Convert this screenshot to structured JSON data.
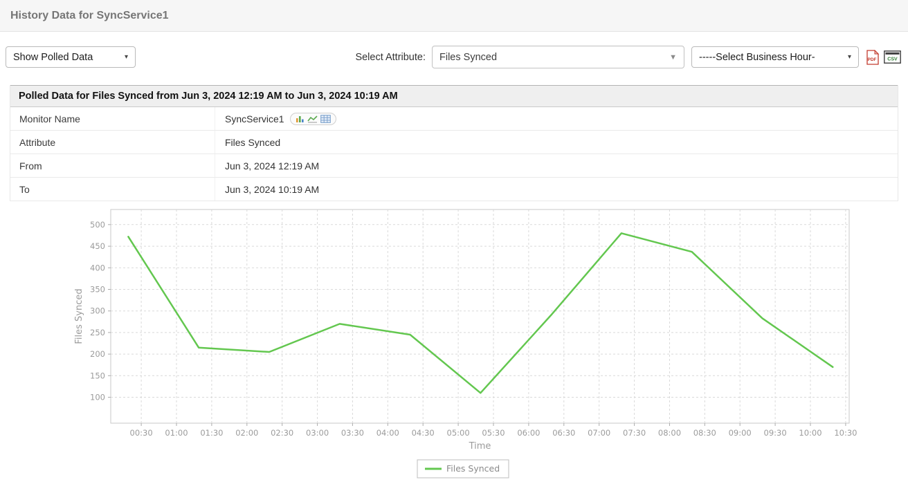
{
  "header": {
    "title": "History Data for SyncService1"
  },
  "toolbar": {
    "polled_select_value": "Show Polled Data",
    "attribute_label": "Select Attribute:",
    "attribute_select_value": "Files Synced",
    "business_hour_select_value": "-----Select Business Hour-",
    "pdf_icon": "PDF",
    "csv_icon": "CSV"
  },
  "summary": {
    "title": "Polled Data for Files Synced from Jun 3, 2024 12:19 AM to Jun 3, 2024 10:19 AM",
    "rows": [
      {
        "label": "Monitor Name",
        "value": "SyncService1"
      },
      {
        "label": "Attribute",
        "value": "Files Synced"
      },
      {
        "label": "From",
        "value": "Jun 3, 2024 12:19 AM"
      },
      {
        "label": "To",
        "value": "Jun 3, 2024 10:19 AM"
      }
    ]
  },
  "chart_data": {
    "type": "line",
    "title": "",
    "xlabel": "Time",
    "ylabel": "Files Synced",
    "legend_position": "bottom-center",
    "grid": "dashed",
    "line_color": "#63c74f",
    "xlim_minutes": [
      4,
      633
    ],
    "ylim": [
      40,
      535
    ],
    "y_ticks": [
      100,
      150,
      200,
      250,
      300,
      350,
      400,
      450,
      500
    ],
    "x_ticks": [
      "00:30",
      "01:00",
      "01:30",
      "02:00",
      "02:30",
      "03:00",
      "03:30",
      "04:00",
      "04:30",
      "05:00",
      "05:30",
      "06:00",
      "06:30",
      "07:00",
      "07:30",
      "08:00",
      "08:30",
      "09:00",
      "09:30",
      "10:00",
      "10:30"
    ],
    "series": [
      {
        "name": "Files Synced",
        "color": "#63c74f",
        "points": [
          {
            "t": "00:19",
            "v": 472
          },
          {
            "t": "01:19",
            "v": 215
          },
          {
            "t": "02:19",
            "v": 205
          },
          {
            "t": "03:19",
            "v": 270
          },
          {
            "t": "04:19",
            "v": 245
          },
          {
            "t": "05:19",
            "v": 110
          },
          {
            "t": "06:19",
            "v": 290
          },
          {
            "t": "07:19",
            "v": 480
          },
          {
            "t": "08:19",
            "v": 437
          },
          {
            "t": "09:19",
            "v": 283
          },
          {
            "t": "10:19",
            "v": 170
          }
        ]
      }
    ]
  }
}
